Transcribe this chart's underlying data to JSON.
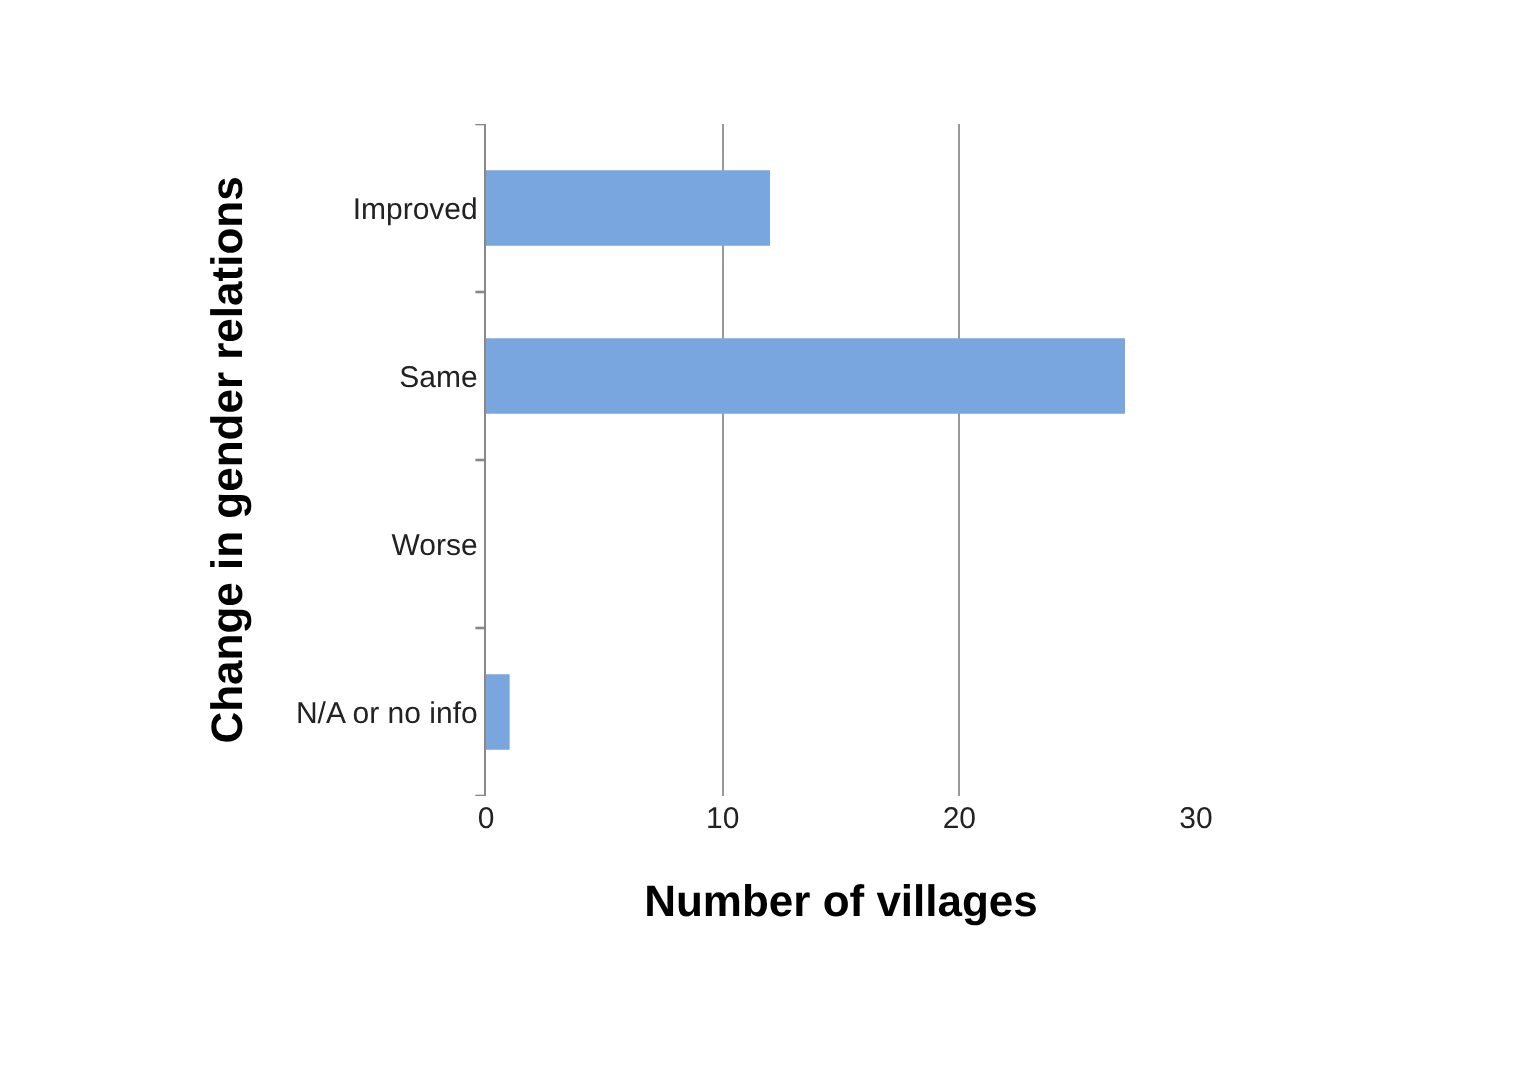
{
  "chart_data": {
    "type": "bar",
    "orientation": "horizontal",
    "xlabel": "Number of villages",
    "ylabel": "Change in gender relations",
    "categories": [
      "Improved",
      "Same",
      "Worse",
      "N/A or no info"
    ],
    "values": [
      12,
      27,
      0,
      1
    ],
    "color": "#7aa6e0",
    "xlim": [
      0,
      30
    ],
    "xticks": [
      0,
      10,
      20,
      30
    ],
    "grid": "x"
  }
}
